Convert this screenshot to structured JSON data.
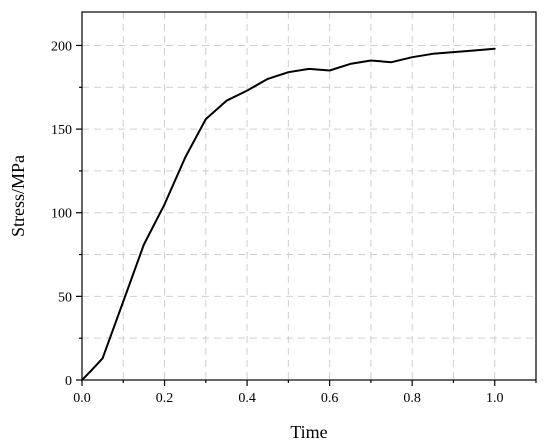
{
  "chart_data": {
    "type": "line",
    "title": "",
    "xlabel": "Time",
    "ylabel": "Stress/MPa",
    "xlim": [
      0.0,
      1.1
    ],
    "ylim": [
      0,
      220
    ],
    "grid": true,
    "x_ticks": [
      {
        "value": 0.0,
        "label": "0.0"
      },
      {
        "value": 0.2,
        "label": "0.2"
      },
      {
        "value": 0.4,
        "label": "0.4"
      },
      {
        "value": 0.6,
        "label": "0.6"
      },
      {
        "value": 0.8,
        "label": "0.8"
      },
      {
        "value": 1.0,
        "label": "1.0"
      }
    ],
    "y_ticks": [
      {
        "value": 0,
        "label": "0"
      },
      {
        "value": 50,
        "label": "50"
      },
      {
        "value": 100,
        "label": "100"
      },
      {
        "value": 150,
        "label": "150"
      },
      {
        "value": 200,
        "label": "200"
      }
    ],
    "series": [
      {
        "color": "#000000",
        "x": [
          0.0,
          0.02,
          0.05,
          0.1,
          0.15,
          0.2,
          0.25,
          0.3,
          0.35,
          0.4,
          0.45,
          0.5,
          0.55,
          0.6,
          0.65,
          0.7,
          0.75,
          0.8,
          0.85,
          0.9,
          0.95,
          1.0
        ],
        "y": [
          0,
          5,
          13,
          47,
          81,
          105,
          133,
          156,
          167,
          173,
          180,
          184,
          186,
          185,
          189,
          191,
          190,
          193,
          195,
          196,
          197,
          198
        ]
      }
    ]
  }
}
